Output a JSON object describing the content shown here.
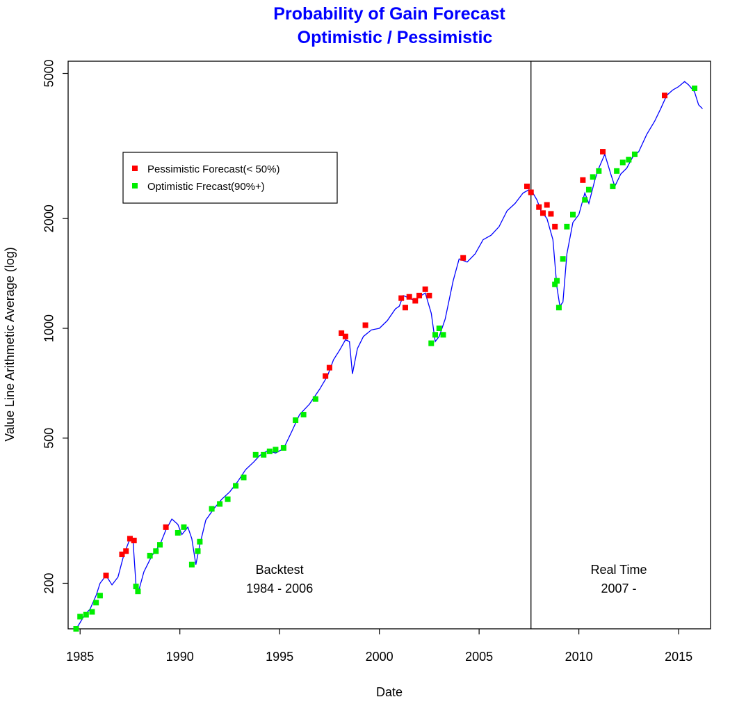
{
  "chart_data": {
    "type": "line",
    "title_line1": "Probability of Gain Forecast",
    "title_line2": "Optimistic / Pessimistic",
    "xlabel": "Date",
    "ylabel": "Value Line Arithmetic Average (log)",
    "xlim": [
      1984.4,
      2016.6
    ],
    "ylim_log": [
      150,
      5400
    ],
    "x_ticks": [
      1985,
      1990,
      1995,
      2000,
      2005,
      2010,
      2015
    ],
    "x_tick_labels": [
      "1985",
      "1990",
      "1995",
      "2000",
      "2005",
      "2010",
      "2015"
    ],
    "y_ticks": [
      200,
      500,
      1000,
      2000,
      5000
    ],
    "y_tick_labels": [
      "200",
      "500",
      "1000",
      "2000",
      "5000"
    ],
    "divider_x": 2007.6,
    "annotations": [
      {
        "line1": "Backtest",
        "line2": "1984 - 2006",
        "x": 1995.0,
        "y": 205
      },
      {
        "line1": "Real Time",
        "line2": "2007 -",
        "x": 2012.0,
        "y": 205
      }
    ],
    "legend": {
      "placement": "upper-left",
      "entries": [
        {
          "label": "Pessimistic Forecast(< 50%)",
          "color": "#ff0000"
        },
        {
          "label": "Optimistic Frecast(90%+)",
          "color": "#00ee00"
        }
      ]
    },
    "colors": {
      "line": "#0000ff",
      "pessimistic": "#ff0000",
      "optimistic": "#00ee00",
      "title": "#0000ff"
    },
    "series": [
      {
        "name": "Value Line Arithmetic Average",
        "x": [
          1984.8,
          1985.0,
          1985.2,
          1985.5,
          1985.8,
          1986.0,
          1986.3,
          1986.6,
          1986.9,
          1987.2,
          1987.5,
          1987.65,
          1987.8,
          1987.95,
          1988.2,
          1988.6,
          1989.0,
          1989.3,
          1989.6,
          1989.9,
          1990.1,
          1990.4,
          1990.6,
          1990.8,
          1991.0,
          1991.3,
          1991.7,
          1992.1,
          1992.5,
          1992.9,
          1993.3,
          1993.7,
          1994.0,
          1994.4,
          1994.8,
          1995.2,
          1995.6,
          1996.0,
          1996.5,
          1997.0,
          1997.4,
          1997.7,
          1998.0,
          1998.3,
          1998.5,
          1998.65,
          1998.9,
          1999.2,
          1999.6,
          2000.0,
          2000.4,
          2000.8,
          2001.0,
          2001.2,
          2001.5,
          2001.8,
          2002.0,
          2002.3,
          2002.6,
          2002.8,
          2003.0,
          2003.3,
          2003.7,
          2004.0,
          2004.4,
          2004.8,
          2005.2,
          2005.6,
          2006.0,
          2006.4,
          2006.8,
          2007.2,
          2007.5,
          2007.7,
          2007.9,
          2008.1,
          2008.4,
          2008.7,
          2008.9,
          2009.05,
          2009.2,
          2009.4,
          2009.7,
          2010.0,
          2010.3,
          2010.5,
          2010.8,
          2011.0,
          2011.3,
          2011.6,
          2011.8,
          2012.1,
          2012.4,
          2012.7,
          2013.0,
          2013.4,
          2013.8,
          2014.1,
          2014.4,
          2014.7,
          2015.0,
          2015.3,
          2015.5,
          2015.8,
          2016.0,
          2016.2
        ],
        "values": [
          150,
          156,
          163,
          170,
          185,
          200,
          210,
          198,
          208,
          240,
          265,
          262,
          198,
          192,
          215,
          238,
          255,
          280,
          300,
          290,
          272,
          285,
          265,
          225,
          255,
          298,
          320,
          340,
          356,
          380,
          410,
          430,
          448,
          462,
          455,
          468,
          520,
          580,
          620,
          680,
          740,
          820,
          870,
          930,
          920,
          750,
          880,
          950,
          990,
          1000,
          1050,
          1130,
          1150,
          1230,
          1210,
          1190,
          1220,
          1250,
          1100,
          920,
          950,
          1060,
          1350,
          1550,
          1520,
          1600,
          1750,
          1800,
          1900,
          2100,
          2200,
          2350,
          2400,
          2350,
          2250,
          2100,
          2000,
          1750,
          1300,
          1150,
          1180,
          1600,
          1950,
          2050,
          2350,
          2200,
          2550,
          2750,
          3000,
          2650,
          2450,
          2650,
          2750,
          2950,
          3050,
          3400,
          3700,
          4000,
          4350,
          4500,
          4600,
          4750,
          4650,
          4450,
          4100,
          4000
        ]
      }
    ],
    "markers": {
      "pessimistic": [
        [
          1986.3,
          210
        ],
        [
          1987.1,
          240
        ],
        [
          1987.3,
          245
        ],
        [
          1987.5,
          265
        ],
        [
          1987.7,
          262
        ],
        [
          1989.3,
          285
        ],
        [
          1997.3,
          740
        ],
        [
          1997.5,
          780
        ],
        [
          1998.1,
          970
        ],
        [
          1998.3,
          950
        ],
        [
          1999.3,
          1020
        ],
        [
          2001.1,
          1210
        ],
        [
          2001.3,
          1140
        ],
        [
          2001.5,
          1220
        ],
        [
          2001.8,
          1190
        ],
        [
          2002.0,
          1230
        ],
        [
          2002.3,
          1280
        ],
        [
          2002.5,
          1230
        ],
        [
          2004.2,
          1560
        ],
        [
          2007.4,
          2450
        ],
        [
          2007.6,
          2360
        ],
        [
          2008.0,
          2150
        ],
        [
          2008.2,
          2070
        ],
        [
          2008.4,
          2180
        ],
        [
          2008.6,
          2060
        ],
        [
          2008.8,
          1900
        ],
        [
          2010.2,
          2550
        ],
        [
          2011.2,
          3050
        ],
        [
          2014.3,
          4350
        ]
      ],
      "optimistic": [
        [
          1984.8,
          150
        ],
        [
          1985.0,
          162
        ],
        [
          1985.3,
          164
        ],
        [
          1985.6,
          167
        ],
        [
          1985.8,
          177
        ],
        [
          1986.0,
          185
        ],
        [
          1987.8,
          196
        ],
        [
          1987.9,
          190
        ],
        [
          1988.5,
          238
        ],
        [
          1988.8,
          245
        ],
        [
          1989.0,
          255
        ],
        [
          1989.9,
          275
        ],
        [
          1990.2,
          285
        ],
        [
          1990.6,
          225
        ],
        [
          1990.9,
          245
        ],
        [
          1991.0,
          260
        ],
        [
          1991.6,
          320
        ],
        [
          1992.0,
          330
        ],
        [
          1992.4,
          340
        ],
        [
          1992.8,
          370
        ],
        [
          1993.2,
          390
        ],
        [
          1993.8,
          450
        ],
        [
          1994.2,
          450
        ],
        [
          1994.5,
          460
        ],
        [
          1994.8,
          465
        ],
        [
          1995.2,
          470
        ],
        [
          1995.8,
          560
        ],
        [
          1996.2,
          580
        ],
        [
          1996.8,
          640
        ],
        [
          2002.6,
          910
        ],
        [
          2002.8,
          960
        ],
        [
          2003.0,
          1000
        ],
        [
          2003.2,
          960
        ],
        [
          2008.8,
          1320
        ],
        [
          2008.9,
          1350
        ],
        [
          2009.0,
          1140
        ],
        [
          2009.2,
          1550
        ],
        [
          2009.4,
          1900
        ],
        [
          2009.7,
          2050
        ],
        [
          2010.3,
          2250
        ],
        [
          2010.5,
          2400
        ],
        [
          2010.7,
          2600
        ],
        [
          2011.0,
          2700
        ],
        [
          2011.7,
          2450
        ],
        [
          2011.9,
          2700
        ],
        [
          2012.2,
          2850
        ],
        [
          2012.5,
          2900
        ],
        [
          2012.8,
          3000
        ],
        [
          2015.8,
          4550
        ]
      ]
    }
  }
}
